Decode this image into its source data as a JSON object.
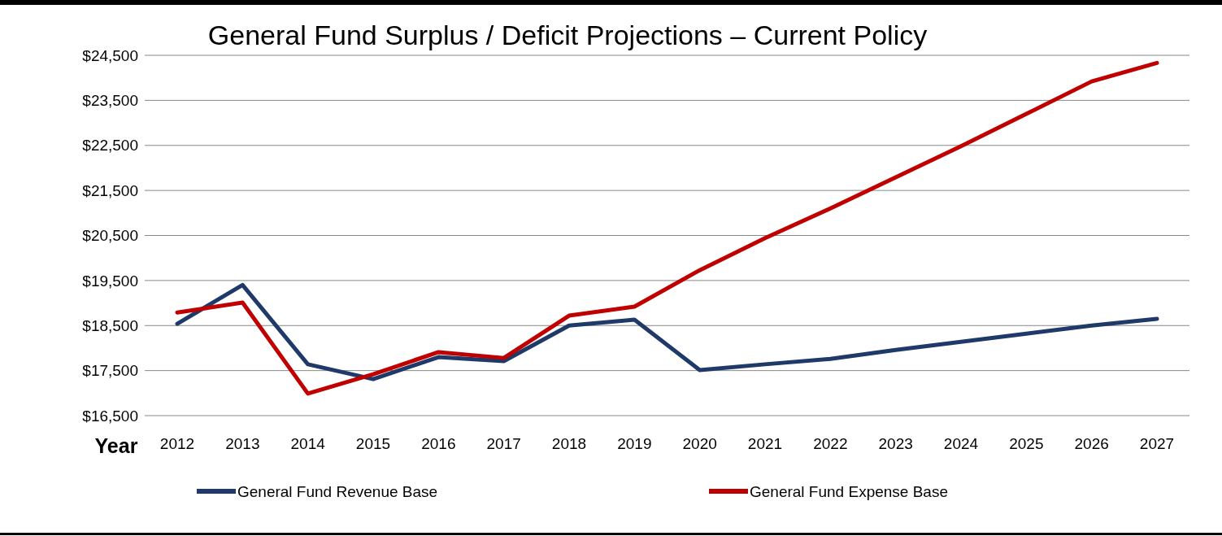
{
  "chart_data": {
    "type": "line",
    "title": "General Fund Surplus / Deficit Projections – Current Policy",
    "xlabel": "Year",
    "categories": [
      "2012",
      "2013",
      "2014",
      "2015",
      "2016",
      "2017",
      "2018",
      "2019",
      "2020",
      "2021",
      "2022",
      "2023",
      "2024",
      "2025",
      "2026",
      "2027"
    ],
    "series": [
      {
        "name": "General Fund Revenue Base",
        "color": "#1f3a68",
        "values": [
          18540,
          19400,
          17640,
          17310,
          17800,
          17710,
          18500,
          18630,
          17510,
          17640,
          17760,
          17960,
          18140,
          18320,
          18500,
          18650
        ]
      },
      {
        "name": "General Fund Expense Base",
        "color": "#c00000",
        "values": [
          18790,
          19010,
          16990,
          17420,
          17910,
          17780,
          18720,
          18920,
          19730,
          20440,
          21100,
          21790,
          22480,
          23200,
          23920,
          24330
        ]
      }
    ],
    "ylim": [
      16500,
      24500
    ],
    "yticks": [
      {
        "value": 16500,
        "label": "$16,500"
      },
      {
        "value": 17500,
        "label": "$17,500"
      },
      {
        "value": 18500,
        "label": "$18,500"
      },
      {
        "value": 19500,
        "label": "$19,500"
      },
      {
        "value": 20500,
        "label": "$20,500"
      },
      {
        "value": 21500,
        "label": "$21,500"
      },
      {
        "value": 22500,
        "label": "$22,500"
      },
      {
        "value": 23500,
        "label": "$23,500"
      },
      {
        "value": 24500,
        "label": "$24,500"
      }
    ],
    "grid": "y",
    "legend": "bottom",
    "marker": "none",
    "line_style": "solid"
  }
}
